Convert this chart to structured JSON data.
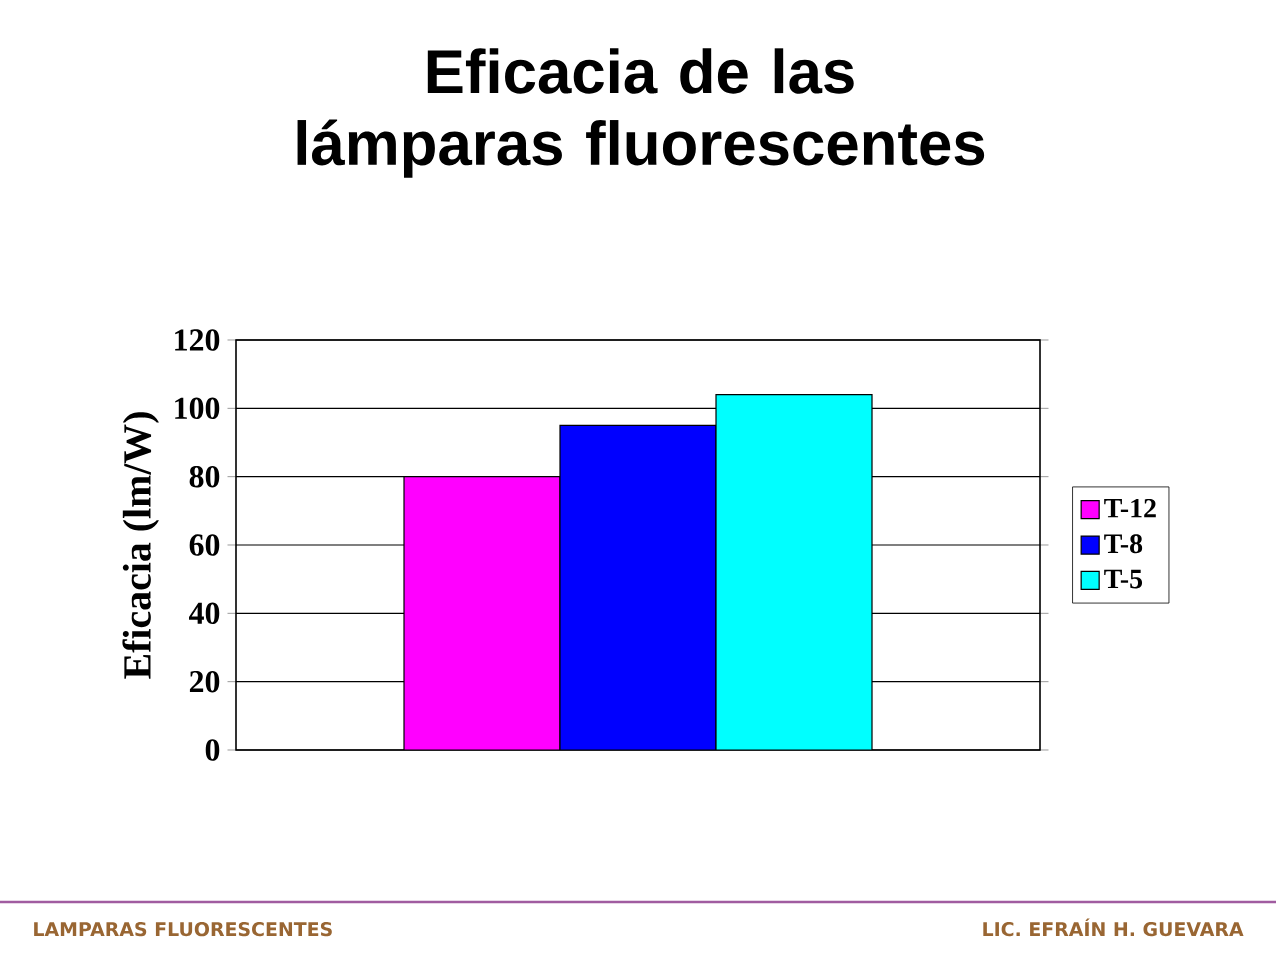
{
  "chart_data": {
    "type": "bar",
    "title": "Eficacia de las lámparas fluorescentes",
    "ylabel": "Eficacia (lm/W)",
    "categories": [
      null
    ],
    "series": [
      {
        "name": "T-12",
        "color": "#ff00ff",
        "values": [
          80
        ]
      },
      {
        "name": "T-8",
        "color": "#0000ff",
        "values": [
          95
        ]
      },
      {
        "name": "T-5",
        "color": "#00ffff",
        "values": [
          104
        ]
      }
    ],
    "ylim": [
      0,
      120
    ],
    "yticks": [
      0,
      20,
      40,
      60,
      80,
      100,
      120
    ],
    "grid": "y",
    "legend": "right",
    "annotations": [
      "LAMPARAS FLUORESCENTES",
      "LIC. EFRAÍN H. GUEVARA"
    ]
  }
}
